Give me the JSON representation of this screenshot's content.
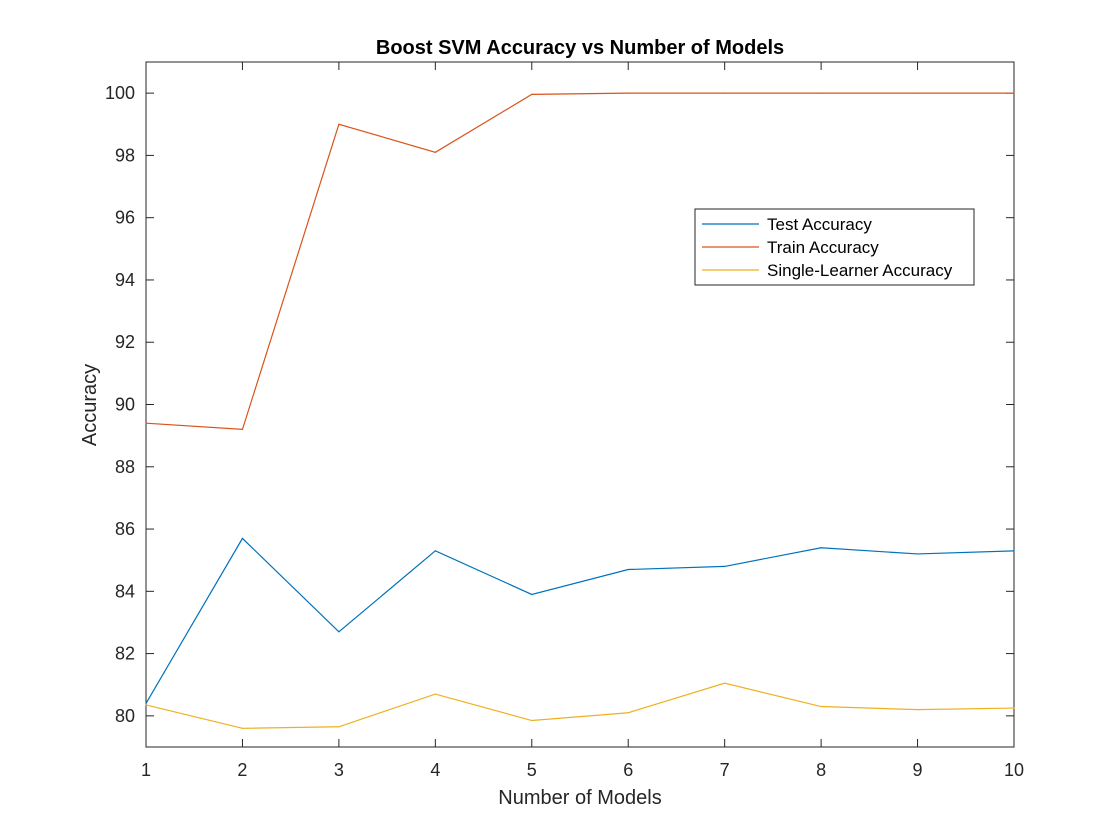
{
  "chart_data": {
    "type": "line",
    "title": "Boost SVM Accuracy vs Number of Models",
    "xlabel": "Number of Models",
    "ylabel": "Accuracy",
    "xlim": [
      1,
      10
    ],
    "ylim": [
      79,
      101
    ],
    "xticks": [
      1,
      2,
      3,
      4,
      5,
      6,
      7,
      8,
      9,
      10
    ],
    "yticks": [
      80,
      82,
      84,
      86,
      88,
      90,
      92,
      94,
      96,
      98,
      100
    ],
    "grid": false,
    "legend_position": "upper-right",
    "x": [
      1,
      2,
      3,
      4,
      5,
      6,
      7,
      8,
      9,
      10
    ],
    "series": [
      {
        "name": "Test Accuracy",
        "color": "#0072BD",
        "values": [
          80.4,
          85.7,
          82.7,
          85.3,
          83.9,
          84.7,
          84.8,
          85.4,
          85.2,
          85.3
        ]
      },
      {
        "name": "Train Accuracy",
        "color": "#D95319",
        "values": [
          89.4,
          89.2,
          99.0,
          98.1,
          99.96,
          100.0,
          100.0,
          100.0,
          100.0,
          100.0
        ]
      },
      {
        "name": "Single-Learner Accuracy",
        "color": "#EDB120",
        "values": [
          80.35,
          79.6,
          79.65,
          80.7,
          79.85,
          80.1,
          81.05,
          80.3,
          80.2,
          80.25
        ]
      }
    ]
  }
}
